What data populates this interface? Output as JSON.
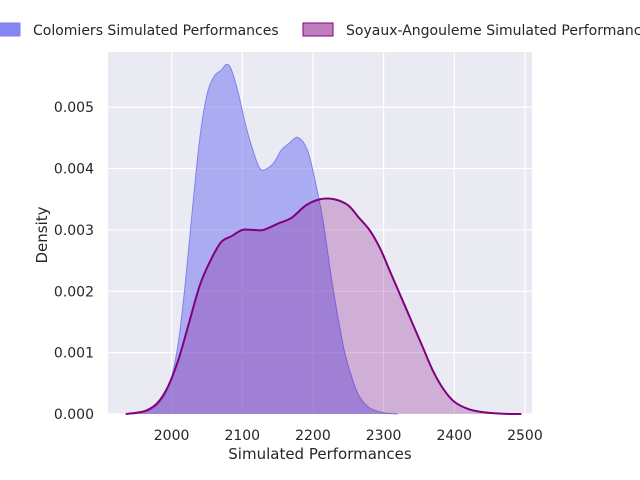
{
  "chart_data": {
    "type": "area",
    "title": "",
    "xlabel": "Simulated Performances",
    "ylabel": "Density",
    "xlim": [
      1910,
      2510
    ],
    "ylim": [
      0,
      0.0059
    ],
    "x_ticks": [
      2000,
      2100,
      2200,
      2300,
      2400,
      2500
    ],
    "y_ticks": [
      0.0,
      0.001,
      0.002,
      0.003,
      0.004,
      0.005
    ],
    "y_tick_labels": [
      "0.000",
      "0.001",
      "0.002",
      "0.003",
      "0.004",
      "0.005"
    ],
    "grid": true,
    "legend_position": "top",
    "series": [
      {
        "name": "Colomiers Simulated Performances",
        "color": "#8080f0",
        "fill_opacity": 0.6,
        "x": [
          1945,
          1960,
          1975,
          1990,
          2000,
          2010,
          2020,
          2030,
          2040,
          2050,
          2060,
          2070,
          2078,
          2085,
          2095,
          2105,
          2115,
          2125,
          2135,
          2145,
          2155,
          2165,
          2175,
          2180,
          2188,
          2195,
          2205,
          2215,
          2225,
          2235,
          2245,
          2255,
          2265,
          2280,
          2300,
          2320
        ],
        "y": [
          0.0,
          3e-05,
          0.0001,
          0.0003,
          0.0006,
          0.0012,
          0.0022,
          0.0034,
          0.0045,
          0.0052,
          0.0055,
          0.0056,
          0.0057,
          0.0056,
          0.0052,
          0.0047,
          0.0043,
          0.004,
          0.004,
          0.0041,
          0.0043,
          0.0044,
          0.0045,
          0.0045,
          0.0044,
          0.0042,
          0.0037,
          0.0031,
          0.0023,
          0.0016,
          0.001,
          0.0006,
          0.0003,
          0.0001,
          2e-05,
          0.0
        ]
      },
      {
        "name": "Soyaux-Angouleme Simulated Performances",
        "color": "#800080",
        "fill_opacity": 0.25,
        "x": [
          1935,
          1950,
          1965,
          1980,
          1995,
          2010,
          2025,
          2040,
          2055,
          2070,
          2085,
          2100,
          2115,
          2130,
          2150,
          2170,
          2190,
          2210,
          2230,
          2250,
          2265,
          2280,
          2295,
          2310,
          2325,
          2340,
          2355,
          2370,
          2385,
          2400,
          2420,
          2440,
          2460,
          2480,
          2495
        ],
        "y": [
          0.0,
          2e-05,
          6e-05,
          0.00018,
          0.00045,
          0.0009,
          0.0015,
          0.0021,
          0.0025,
          0.0028,
          0.0029,
          0.003,
          0.003,
          0.003,
          0.0031,
          0.0032,
          0.0034,
          0.0035,
          0.0035,
          0.0034,
          0.0032,
          0.003,
          0.0027,
          0.0023,
          0.0019,
          0.0015,
          0.0011,
          0.0007,
          0.0004,
          0.0002,
          8e-05,
          3e-05,
          1e-05,
          0.0,
          0.0
        ]
      }
    ]
  }
}
